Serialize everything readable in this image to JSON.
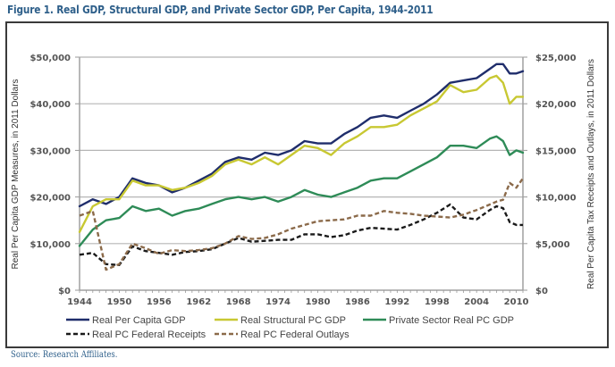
{
  "figure_title": "Figure 1. Real GDP, Structural GDP, and Private Sector GDP, Per Capita, 1944-2011",
  "source": "Source: Research Affiliates.",
  "chart_data": {
    "type": "line",
    "title": "Figure 1. Real GDP, Structural GDP, and Private Sector GDP, Per Capita, 1944-2011",
    "xlabel": "",
    "ylabel": "Real Per Capita GDP Measures, in 2011 Dollars",
    "ylabel_right": "Real Per Capita Tax Receipts and Outlays, in 2011 Dollars",
    "xlim": [
      1944,
      2011
    ],
    "ylim": [
      0,
      50000
    ],
    "ylim_right": [
      0,
      25000
    ],
    "x_ticks": [
      "1944",
      "1950",
      "1956",
      "1962",
      "1968",
      "1974",
      "1980",
      "1986",
      "1992",
      "1998",
      "2004",
      "2010"
    ],
    "y_ticks_left": [
      "$0",
      "$10,000",
      "$20,000",
      "$30,000",
      "$40,000",
      "$50,000"
    ],
    "y_ticks_right": [
      "$0",
      "$5,000",
      "$10,000",
      "$15,000",
      "$20,000",
      "$25,000"
    ],
    "grid": true,
    "legend_position": "bottom",
    "x": [
      1944,
      1946,
      1948,
      1950,
      1952,
      1954,
      1956,
      1958,
      1960,
      1962,
      1964,
      1966,
      1968,
      1970,
      1972,
      1974,
      1976,
      1978,
      1980,
      1982,
      1984,
      1986,
      1988,
      1990,
      1992,
      1994,
      1996,
      1998,
      2000,
      2002,
      2004,
      2006,
      2007,
      2008,
      2009,
      2010,
      2011
    ],
    "series": [
      {
        "name": "Real Per Capita GDP",
        "axis": "left",
        "color": "#1f2d6b",
        "dash": false,
        "values": [
          18000,
          19500,
          18500,
          20000,
          24000,
          23000,
          22500,
          21000,
          22000,
          23500,
          25000,
          27500,
          28500,
          28000,
          29500,
          29000,
          30000,
          32000,
          31500,
          31500,
          33500,
          35000,
          37000,
          37500,
          37000,
          38500,
          40000,
          42000,
          44500,
          45000,
          45500,
          47500,
          48500,
          48500,
          46500,
          46500,
          47000
        ]
      },
      {
        "name": "Real Structural PC GDP",
        "axis": "left",
        "color": "#c8c832",
        "dash": false,
        "values": [
          12500,
          18000,
          19500,
          19500,
          23500,
          22500,
          22500,
          21500,
          22000,
          23000,
          24500,
          27000,
          28000,
          27000,
          28500,
          27000,
          29000,
          31000,
          30500,
          29000,
          31500,
          33000,
          35000,
          35000,
          35500,
          37500,
          39000,
          40500,
          44000,
          42500,
          43000,
          45500,
          46000,
          44500,
          40000,
          41500,
          41500
        ]
      },
      {
        "name": "Private Sector Real PC GDP",
        "axis": "left",
        "color": "#2e8b57",
        "dash": false,
        "values": [
          9500,
          13000,
          15000,
          15500,
          18000,
          17000,
          17500,
          16000,
          17000,
          17500,
          18500,
          19500,
          20000,
          19500,
          20000,
          19000,
          20000,
          21500,
          20500,
          20000,
          21000,
          22000,
          23500,
          24000,
          24000,
          25500,
          27000,
          28500,
          31000,
          31000,
          30500,
          32500,
          33000,
          32000,
          29000,
          30000,
          29500
        ]
      },
      {
        "name": "Real PC Federal Receipts",
        "axis": "right",
        "color": "#1a1a1a",
        "dash": true,
        "values": [
          3800,
          4000,
          2800,
          2700,
          4700,
          4200,
          4000,
          3800,
          4100,
          4200,
          4400,
          5000,
          5600,
          5200,
          5300,
          5400,
          5400,
          6000,
          6000,
          5700,
          5900,
          6400,
          6700,
          6600,
          6500,
          7000,
          7600,
          8300,
          9200,
          7800,
          7600,
          8600,
          9000,
          8800,
          7300,
          7000,
          7000
        ]
      },
      {
        "name": "Real PC Federal Outlays",
        "axis": "right",
        "color": "#8b6a4a",
        "dash": true,
        "values": [
          8000,
          8500,
          2200,
          2800,
          5000,
          4500,
          3900,
          4300,
          4200,
          4300,
          4500,
          5000,
          5800,
          5500,
          5600,
          6000,
          6600,
          7000,
          7400,
          7500,
          7600,
          8000,
          8000,
          8500,
          8300,
          8200,
          8000,
          7900,
          7800,
          8100,
          8600,
          9200,
          9500,
          9700,
          11500,
          11000,
          12000
        ]
      }
    ]
  },
  "legend": {
    "row1": [
      "Real Per Capita GDP",
      "Real Structural PC GDP",
      "Private Sector Real PC GDP"
    ],
    "row2": [
      "Real PC Federal Receipts",
      "Real PC Federal Outlays"
    ]
  }
}
